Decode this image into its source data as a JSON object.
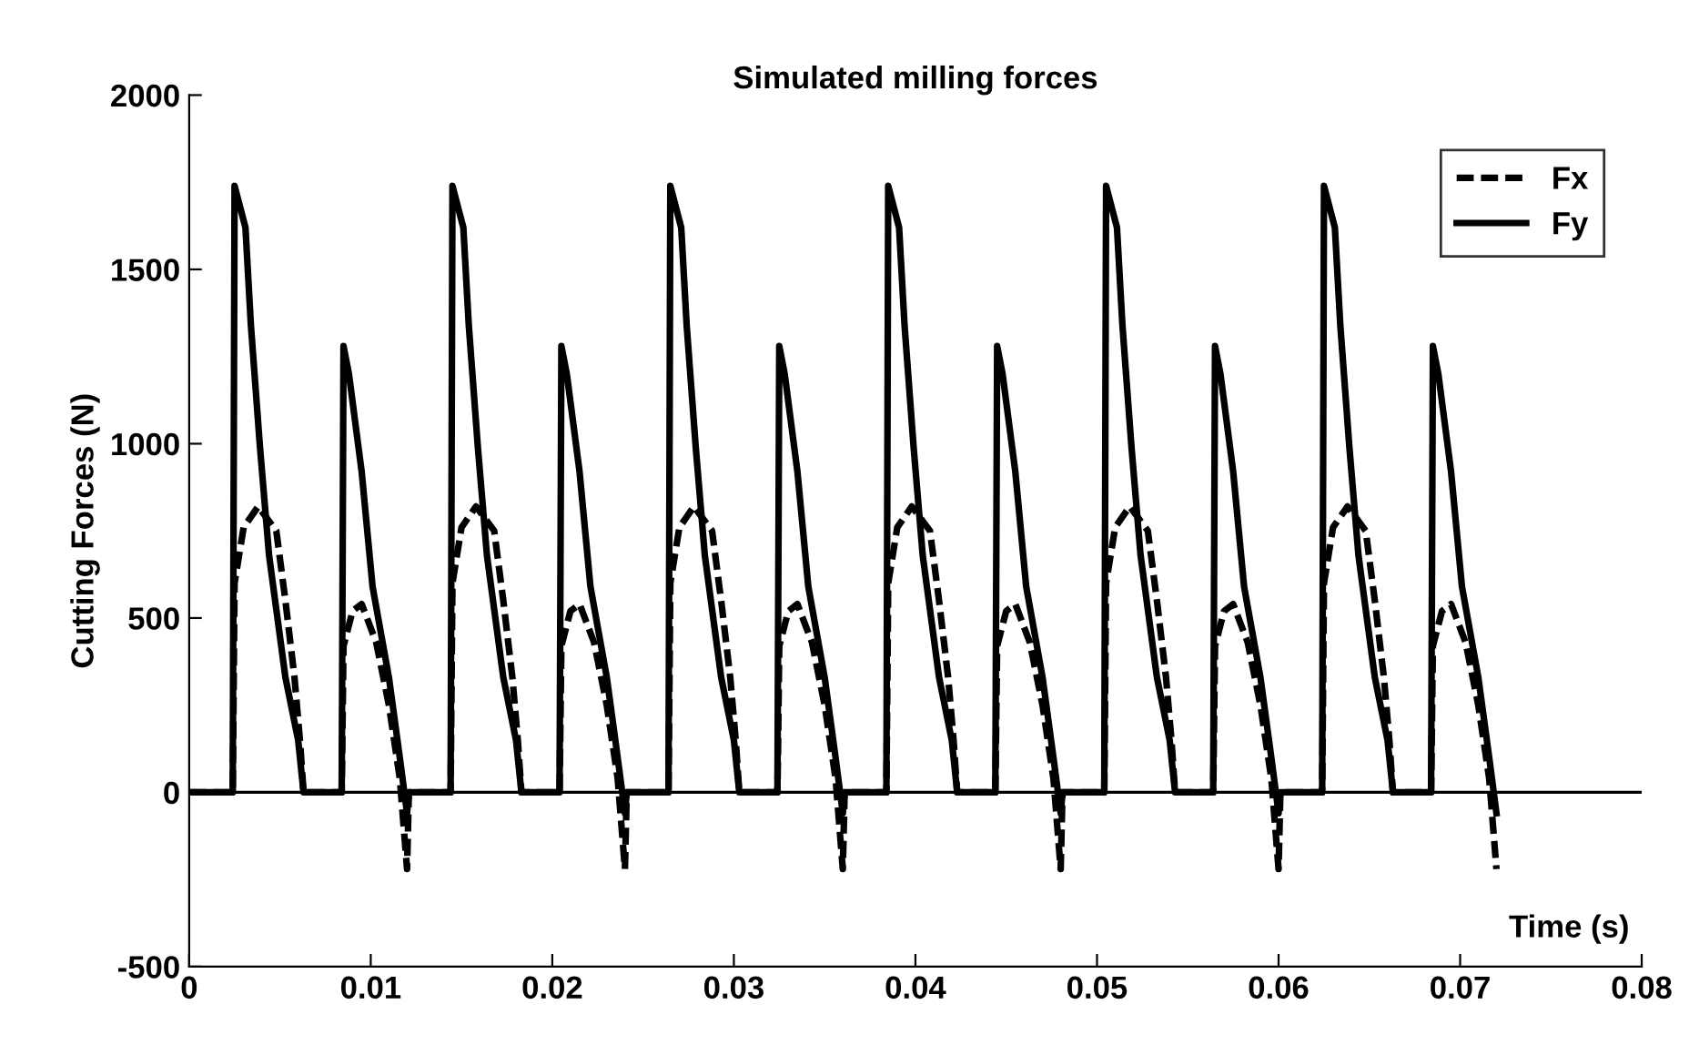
{
  "chart_data": {
    "type": "line",
    "title": "Simulated milling forces",
    "xlabel": "Time (s)",
    "ylabel": "Cutting Forces (N)",
    "xlim": [
      0,
      0.08
    ],
    "xticks": [
      0,
      0.01,
      0.02,
      0.03,
      0.04,
      0.05,
      0.06,
      0.07,
      0.08
    ],
    "ylim": [
      -500,
      2000
    ],
    "yticks": [
      -500,
      0,
      500,
      1000,
      1500,
      2000
    ],
    "grid": false,
    "legend": "top right",
    "marker": "none",
    "ref_lines": [
      {
        "axis": "y",
        "value": 0,
        "color": "#000000",
        "line_style": "solid"
      }
    ],
    "series": [
      {
        "name": "Fx",
        "color": "#000000",
        "line_style": "dashed",
        "x": [
          0,
          0.0024,
          0.0025,
          0.003,
          0.0038,
          0.0048,
          0.0053,
          0.0058,
          0.0061,
          0.0063,
          0.0084,
          0.0085,
          0.009,
          0.0095,
          0.0103,
          0.011,
          0.0116,
          0.012,
          0.0121,
          0.0144,
          0.0145,
          0.015,
          0.0158,
          0.0168,
          0.0173,
          0.0178,
          0.0181,
          0.0183,
          0.0204,
          0.0205,
          0.021,
          0.0215,
          0.0223,
          0.023,
          0.0236,
          0.024,
          0.0241,
          0.0264,
          0.0265,
          0.027,
          0.0278,
          0.0288,
          0.0293,
          0.0298,
          0.0301,
          0.0303,
          0.0324,
          0.0325,
          0.033,
          0.0335,
          0.0343,
          0.035,
          0.0356,
          0.036,
          0.0361,
          0.0384,
          0.0385,
          0.039,
          0.0398,
          0.0408,
          0.0413,
          0.0418,
          0.0421,
          0.0423,
          0.0444,
          0.0445,
          0.045,
          0.0455,
          0.0463,
          0.047,
          0.0476,
          0.048,
          0.0481,
          0.0504,
          0.0505,
          0.051,
          0.0518,
          0.0528,
          0.0533,
          0.0538,
          0.0541,
          0.0543,
          0.0564,
          0.0565,
          0.057,
          0.0575,
          0.0583,
          0.059,
          0.0596,
          0.06,
          0.0601,
          0.0624,
          0.0625,
          0.063,
          0.0638,
          0.0648,
          0.0653,
          0.0658,
          0.0661,
          0.0663,
          0.0684,
          0.0685,
          0.069,
          0.0695,
          0.0703,
          0.071,
          0.0716,
          0.072
        ],
        "values": [
          0,
          0,
          600,
          760,
          820,
          750,
          550,
          330,
          150,
          0,
          0,
          420,
          520,
          540,
          430,
          250,
          40,
          -220,
          0,
          0,
          600,
          760,
          820,
          750,
          550,
          330,
          150,
          0,
          0,
          420,
          520,
          540,
          430,
          250,
          40,
          -220,
          0,
          0,
          600,
          760,
          820,
          750,
          550,
          330,
          150,
          0,
          0,
          420,
          520,
          540,
          430,
          250,
          40,
          -220,
          0,
          0,
          600,
          760,
          820,
          750,
          550,
          330,
          150,
          0,
          0,
          420,
          520,
          540,
          430,
          250,
          40,
          -220,
          0,
          0,
          600,
          760,
          820,
          750,
          550,
          330,
          150,
          0,
          0,
          420,
          520,
          540,
          430,
          250,
          40,
          -220,
          0,
          0,
          600,
          760,
          820,
          750,
          550,
          330,
          150,
          0,
          0,
          420,
          520,
          540,
          430,
          250,
          40,
          -220
        ]
      },
      {
        "name": "Fy",
        "color": "#000000",
        "line_style": "solid",
        "x": [
          0,
          0.0024,
          0.0025,
          0.0031,
          0.0034,
          0.0039,
          0.0044,
          0.0053,
          0.006,
          0.0063,
          0.0084,
          0.0085,
          0.0088,
          0.0095,
          0.0101,
          0.011,
          0.0116,
          0.012,
          0.0121,
          0.0144,
          0.0145,
          0.0151,
          0.0154,
          0.0159,
          0.0164,
          0.0173,
          0.018,
          0.0183,
          0.0204,
          0.0205,
          0.0208,
          0.0215,
          0.0221,
          0.023,
          0.0236,
          0.024,
          0.0241,
          0.0264,
          0.0265,
          0.0271,
          0.0274,
          0.0279,
          0.0284,
          0.0293,
          0.03,
          0.0303,
          0.0324,
          0.0325,
          0.0328,
          0.0335,
          0.0341,
          0.035,
          0.0356,
          0.036,
          0.0361,
          0.0384,
          0.0385,
          0.0391,
          0.0394,
          0.0399,
          0.0404,
          0.0413,
          0.042,
          0.0423,
          0.0444,
          0.0445,
          0.0448,
          0.0455,
          0.0461,
          0.047,
          0.0476,
          0.048,
          0.0481,
          0.0504,
          0.0505,
          0.0511,
          0.0514,
          0.0519,
          0.0524,
          0.0533,
          0.054,
          0.0543,
          0.0564,
          0.0565,
          0.0568,
          0.0575,
          0.0581,
          0.059,
          0.0596,
          0.06,
          0.0601,
          0.0624,
          0.0625,
          0.0631,
          0.0634,
          0.0639,
          0.0644,
          0.0653,
          0.066,
          0.0663,
          0.0684,
          0.0685,
          0.0688,
          0.0695,
          0.0701,
          0.071,
          0.0716,
          0.072
        ],
        "values": [
          0,
          0,
          1740,
          1620,
          1340,
          990,
          680,
          330,
          150,
          0,
          0,
          1280,
          1200,
          920,
          590,
          330,
          100,
          -60,
          0,
          0,
          1740,
          1620,
          1340,
          990,
          680,
          330,
          150,
          0,
          0,
          1280,
          1200,
          920,
          590,
          330,
          100,
          -60,
          0,
          0,
          1740,
          1620,
          1340,
          990,
          680,
          330,
          150,
          0,
          0,
          1280,
          1200,
          920,
          590,
          330,
          100,
          -60,
          0,
          0,
          1740,
          1620,
          1340,
          990,
          680,
          330,
          150,
          0,
          0,
          1280,
          1200,
          920,
          590,
          330,
          100,
          -60,
          0,
          0,
          1740,
          1620,
          1340,
          990,
          680,
          330,
          150,
          0,
          0,
          1280,
          1200,
          920,
          590,
          330,
          100,
          -60,
          0,
          0,
          1740,
          1620,
          1340,
          990,
          680,
          330,
          150,
          0,
          0,
          1280,
          1200,
          920,
          590,
          330,
          100,
          -60
        ]
      }
    ]
  }
}
